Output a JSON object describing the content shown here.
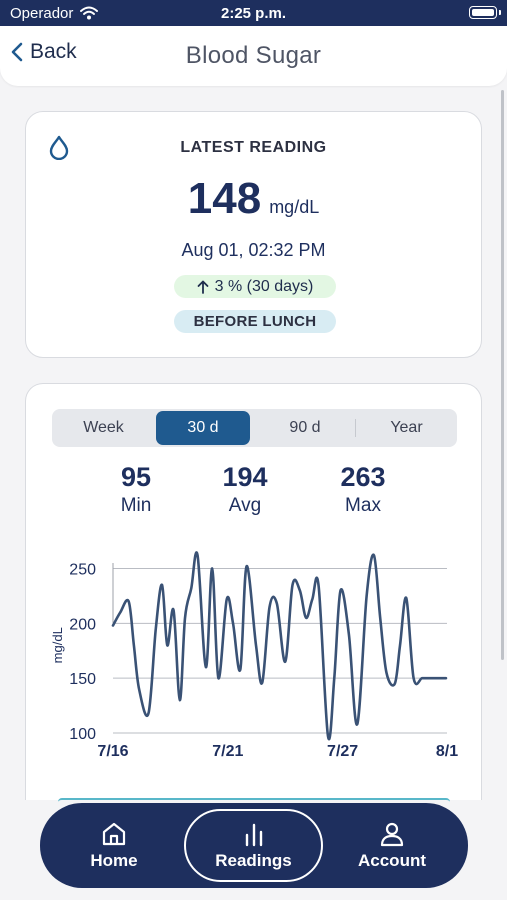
{
  "status_bar": {
    "carrier": "Operador",
    "time": "2:25 p.m."
  },
  "nav": {
    "back_label": "Back",
    "title": "Blood Sugar"
  },
  "latest": {
    "heading": "LATEST READING",
    "value": "148",
    "unit": "mg/dL",
    "datetime": "Aug 01, 02:32 PM",
    "trend": "3 % (30 days)",
    "meal_tag": "BEFORE LUNCH"
  },
  "range_tabs": [
    "Week",
    "30 d",
    "90 d",
    "Year"
  ],
  "selected_range": "30 d",
  "stats": [
    {
      "value": "95",
      "label": "Min"
    },
    {
      "value": "194",
      "label": "Avg"
    },
    {
      "value": "263",
      "label": "Max"
    }
  ],
  "chart_data": {
    "type": "line",
    "ylabel": "mg/dL",
    "ylim": [
      90,
      265
    ],
    "yticks": [
      "250",
      "200",
      "150",
      "100"
    ],
    "xticks": [
      "7/16",
      "7/21",
      "7/27",
      "8/1"
    ],
    "xlim": [
      0,
      16
    ],
    "series": [
      {
        "x": [
          0,
          0.35,
          0.75,
          1.0,
          1.25,
          1.7,
          2.05,
          2.35,
          2.6,
          2.9,
          3.2,
          3.45,
          3.75,
          4.05,
          4.45,
          4.75,
          5.05,
          5.45,
          5.75,
          6.1,
          6.4,
          6.85,
          7.15,
          7.5,
          7.85,
          8.25,
          8.6,
          8.95,
          9.25,
          9.55,
          9.85,
          10.3,
          10.6,
          10.9,
          11.3,
          11.7,
          12.15,
          12.5,
          12.8,
          13.1,
          13.5,
          13.75,
          14.05,
          14.4,
          14.8,
          15.05,
          15.35,
          15.6,
          15.95
        ],
        "y": [
          198,
          210,
          220,
          180,
          140,
          118,
          195,
          235,
          180,
          212,
          130,
          205,
          232,
          262,
          160,
          250,
          150,
          222,
          200,
          158,
          252,
          180,
          146,
          215,
          218,
          165,
          235,
          230,
          205,
          222,
          234,
          97,
          150,
          230,
          190,
          108,
          225,
          262,
          205,
          155,
          145,
          180,
          223,
          150,
          150,
          150,
          150,
          150,
          150
        ]
      }
    ]
  },
  "tab_bar": {
    "home": "Home",
    "readings": "Readings",
    "account": "Account"
  }
}
